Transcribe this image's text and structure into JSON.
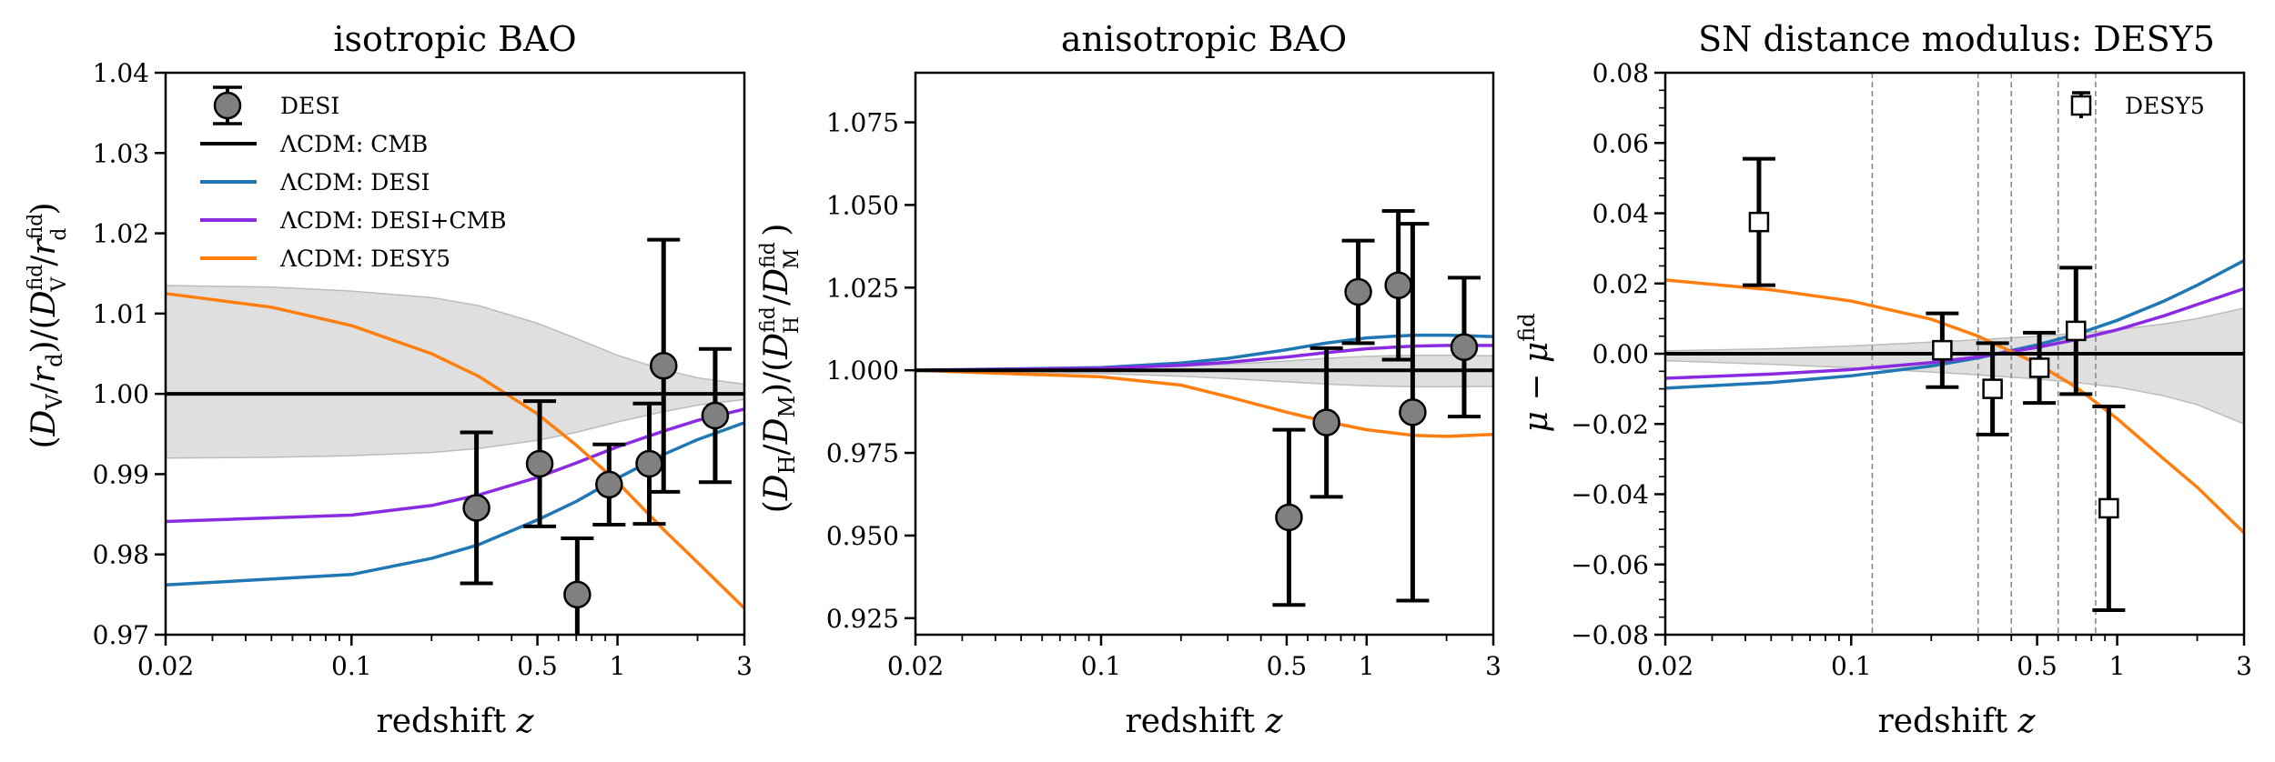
{
  "chart_data": [
    {
      "type": "scatter",
      "title": "isotropic BAO",
      "xlabel": "redshift z",
      "ylabel": "(D_V/r_d)/(D_V^fid/r_d^fid)",
      "xscale": "log",
      "xlim": [
        0.02,
        3
      ],
      "ylim": [
        0.97,
        1.04
      ],
      "xticks": [
        0.02,
        0.1,
        0.5,
        1,
        3
      ],
      "xtick_labels": [
        "0.02",
        "0.1",
        "0.5",
        "1",
        "3"
      ],
      "yticks": [
        0.97,
        0.98,
        0.99,
        1.0,
        1.01,
        1.02,
        1.03,
        1.04
      ],
      "ytick_labels": [
        "0.97",
        "0.98",
        "0.99",
        "1.00",
        "1.01",
        "1.02",
        "1.03",
        "1.04"
      ],
      "legend": {
        "position": "top-left",
        "entries": [
          "DESI",
          "ΛCDM: CMB",
          "ΛCDM: DESI",
          "ΛCDM: DESI+CMB",
          "ΛCDM: DESY5"
        ]
      },
      "points": [
        {
          "x": 0.295,
          "y": 0.9858,
          "err": 0.0094
        },
        {
          "x": 0.51,
          "y": 0.9913,
          "err": 0.0078
        },
        {
          "x": 0.706,
          "y": 0.975,
          "err": 0.007
        },
        {
          "x": 0.93,
          "y": 0.9887,
          "err": 0.005
        },
        {
          "x": 1.317,
          "y": 0.9913,
          "err": 0.0075
        },
        {
          "x": 1.491,
          "y": 1.0035,
          "err": 0.0157
        },
        {
          "x": 2.33,
          "y": 0.9973,
          "err": 0.0083
        }
      ],
      "series": [
        {
          "name": "ΛCDM: CMB",
          "color": "#000000",
          "x": [
            0.02,
            3
          ],
          "y": [
            1.0,
            1.0
          ]
        },
        {
          "name": "ΛCDM: DESI",
          "color": "#1f77b4",
          "x": [
            0.02,
            0.1,
            0.2,
            0.3,
            0.5,
            0.7,
            1.0,
            1.5,
            2.0,
            3.0
          ],
          "y": [
            0.9762,
            0.9775,
            0.9795,
            0.9812,
            0.9843,
            0.9866,
            0.9895,
            0.9925,
            0.9943,
            0.9964
          ]
        },
        {
          "name": "ΛCDM: DESI+CMB",
          "color": "#8a2be2",
          "x": [
            0.02,
            0.1,
            0.2,
            0.3,
            0.5,
            0.7,
            1.0,
            1.5,
            2.0,
            3.0
          ],
          "y": [
            0.9841,
            0.9849,
            0.9861,
            0.9874,
            0.9896,
            0.9914,
            0.9934,
            0.9954,
            0.9967,
            0.9981
          ]
        },
        {
          "name": "ΛCDM: DESY5",
          "color": "#ff7f0e",
          "x": [
            0.02,
            0.05,
            0.1,
            0.2,
            0.3,
            0.5,
            0.7,
            1.0,
            1.5,
            2.0,
            3.0
          ],
          "y": [
            1.0125,
            1.0108,
            1.0085,
            1.005,
            1.0022,
            0.9975,
            0.9936,
            0.989,
            0.983,
            0.979,
            0.9733
          ]
        }
      ],
      "band": {
        "x": [
          0.02,
          0.05,
          0.1,
          0.2,
          0.3,
          0.5,
          0.7,
          1.0,
          1.5,
          2.0,
          3.0
        ],
        "upper": [
          1.0135,
          1.0133,
          1.0128,
          1.012,
          1.011,
          1.0088,
          1.0069,
          1.0048,
          1.003,
          1.002,
          1.0012
        ],
        "lower": [
          0.992,
          0.9921,
          0.9923,
          0.9927,
          0.9932,
          0.9942,
          0.9952,
          0.9965,
          0.9978,
          0.9986,
          0.9993
        ]
      }
    },
    {
      "type": "scatter",
      "title": "anisotropic BAO",
      "xlabel": "redshift z",
      "ylabel": "(D_H/D_M)/(D_H^fid/D_M^fid)",
      "xscale": "log",
      "xlim": [
        0.02,
        3
      ],
      "ylim": [
        0.92,
        1.09
      ],
      "xticks": [
        0.02,
        0.1,
        0.5,
        1,
        3
      ],
      "xtick_labels": [
        "0.02",
        "0.1",
        "0.5",
        "1",
        "3"
      ],
      "yticks": [
        0.925,
        0.95,
        0.975,
        1.0,
        1.025,
        1.05,
        1.075
      ],
      "ytick_labels": [
        "0.925",
        "0.950",
        "0.975",
        "1.000",
        "1.025",
        "1.050",
        "1.075"
      ],
      "points": [
        {
          "x": 0.51,
          "y": 0.9555,
          "err": 0.0265
        },
        {
          "x": 0.706,
          "y": 0.9842,
          "err": 0.0225
        },
        {
          "x": 0.93,
          "y": 1.0237,
          "err": 0.0155
        },
        {
          "x": 1.317,
          "y": 1.0257,
          "err": 0.0225
        },
        {
          "x": 1.491,
          "y": 0.9873,
          "err": 0.057
        },
        {
          "x": 2.33,
          "y": 1.007,
          "err": 0.021
        }
      ],
      "series": [
        {
          "name": "ΛCDM: CMB",
          "color": "#000000",
          "x": [
            0.02,
            3
          ],
          "y": [
            1.0,
            1.0
          ]
        },
        {
          "name": "ΛCDM: DESI",
          "color": "#1f77b4",
          "x": [
            0.02,
            0.1,
            0.2,
            0.3,
            0.5,
            0.7,
            1.0,
            1.5,
            2.0,
            3.0
          ],
          "y": [
            1.0,
            1.0008,
            1.0022,
            1.0036,
            1.0062,
            1.0082,
            1.0098,
            1.0106,
            1.0106,
            1.0102
          ]
        },
        {
          "name": "ΛCDM: DESI+CMB",
          "color": "#8a2be2",
          "x": [
            0.02,
            0.1,
            0.2,
            0.3,
            0.5,
            0.7,
            1.0,
            1.5,
            2.0,
            3.0
          ],
          "y": [
            1.0,
            1.0006,
            1.0015,
            1.0024,
            1.004,
            1.0053,
            1.0065,
            1.0073,
            1.0075,
            1.0075
          ]
        },
        {
          "name": "ΛCDM: DESY5",
          "color": "#ff7f0e",
          "x": [
            0.02,
            0.1,
            0.2,
            0.3,
            0.5,
            0.7,
            1.0,
            1.5,
            2.0,
            3.0
          ],
          "y": [
            1.0,
            0.998,
            0.9955,
            0.992,
            0.9873,
            0.9845,
            0.982,
            0.9803,
            0.98,
            0.9806
          ]
        }
      ],
      "band": {
        "x": [
          0.02,
          0.1,
          0.2,
          0.3,
          0.5,
          0.7,
          1.0,
          1.5,
          2.0,
          3.0
        ],
        "upper": [
          1.0002,
          1.0006,
          1.0012,
          1.0018,
          1.0028,
          1.0036,
          1.0042,
          1.0045,
          1.0045,
          1.0044
        ],
        "lower": [
          0.9998,
          0.999,
          0.9982,
          0.9975,
          0.9965,
          0.9958,
          0.9953,
          0.995,
          0.995,
          0.9951
        ]
      }
    },
    {
      "type": "scatter",
      "title": "SN distance modulus: DESY5",
      "xlabel": "redshift z",
      "ylabel": "μ − μ^fid",
      "xscale": "log",
      "xlim": [
        0.02,
        3
      ],
      "ylim": [
        -0.08,
        0.08
      ],
      "xticks": [
        0.02,
        0.1,
        0.5,
        1,
        3
      ],
      "xtick_labels": [
        "0.02",
        "0.1",
        "0.5",
        "1",
        "3"
      ],
      "yticks": [
        -0.08,
        -0.06,
        -0.04,
        -0.02,
        0.0,
        0.02,
        0.04,
        0.06,
        0.08
      ],
      "ytick_labels": [
        "−0.08",
        "−0.06",
        "−0.04",
        "−0.02",
        "0.00",
        "0.02",
        "0.04",
        "0.06",
        "0.08"
      ],
      "legend": {
        "position": "top-right",
        "entries": [
          "DESY5"
        ]
      },
      "bin_edges": [
        0.12,
        0.3,
        0.4,
        0.6,
        0.83
      ],
      "points": [
        {
          "x": 0.045,
          "y": 0.0375,
          "err": 0.018
        },
        {
          "x": 0.22,
          "y": 0.001,
          "err": 0.0105
        },
        {
          "x": 0.34,
          "y": -0.01,
          "err": 0.013
        },
        {
          "x": 0.51,
          "y": -0.004,
          "err": 0.01
        },
        {
          "x": 0.7,
          "y": 0.0065,
          "err": 0.018
        },
        {
          "x": 0.93,
          "y": -0.044,
          "err": 0.029
        }
      ],
      "series": [
        {
          "name": "ΛCDM: CMB",
          "color": "#000000",
          "x": [
            0.02,
            3
          ],
          "y": [
            0.0,
            0.0
          ]
        },
        {
          "name": "ΛCDM: DESI",
          "color": "#1f77b4",
          "x": [
            0.02,
            0.05,
            0.1,
            0.2,
            0.3,
            0.5,
            0.7,
            1.0,
            1.5,
            2.0,
            3.0
          ],
          "y": [
            -0.0098,
            -0.0082,
            -0.0063,
            -0.0035,
            -0.0012,
            0.0025,
            0.0055,
            0.0095,
            0.015,
            0.0195,
            0.0265
          ]
        },
        {
          "name": "ΛCDM: DESI+CMB",
          "color": "#8a2be2",
          "x": [
            0.02,
            0.05,
            0.1,
            0.2,
            0.3,
            0.5,
            0.7,
            1.0,
            1.5,
            2.0,
            3.0
          ],
          "y": [
            -0.007,
            -0.0058,
            -0.0045,
            -0.0025,
            -0.0009,
            0.0018,
            0.004,
            0.0068,
            0.0108,
            0.014,
            0.0185
          ]
        },
        {
          "name": "ΛCDM: DESY5",
          "color": "#ff7f0e",
          "x": [
            0.02,
            0.05,
            0.1,
            0.2,
            0.3,
            0.5,
            0.7,
            1.0,
            1.5,
            2.0,
            3.0
          ],
          "y": [
            0.021,
            0.0182,
            0.015,
            0.0098,
            0.005,
            -0.0028,
            -0.0095,
            -0.0185,
            -0.03,
            -0.038,
            -0.051
          ]
        }
      ],
      "band": {
        "x": [
          0.02,
          0.05,
          0.1,
          0.2,
          0.3,
          0.5,
          0.7,
          1.0,
          1.5,
          2.0,
          3.0
        ],
        "upper": [
          0.0008,
          0.0014,
          0.0022,
          0.0033,
          0.004,
          0.005,
          0.0058,
          0.0068,
          0.0085,
          0.01,
          0.013
        ],
        "lower": [
          -0.002,
          -0.003,
          -0.004,
          -0.0052,
          -0.006,
          -0.0072,
          -0.0082,
          -0.0095,
          -0.012,
          -0.0145,
          -0.02
        ]
      }
    }
  ]
}
